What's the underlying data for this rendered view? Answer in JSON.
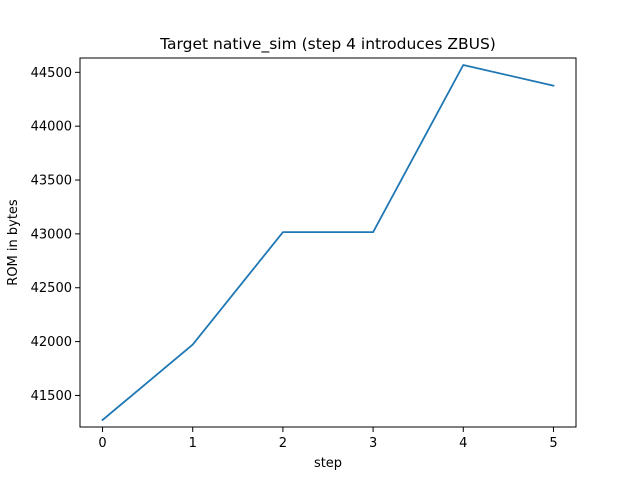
{
  "chart_data": {
    "type": "line",
    "title": "Target native_sim (step 4 introduces ZBUS)",
    "xlabel": "step",
    "ylabel": "ROM in bytes",
    "x": [
      0,
      1,
      2,
      3,
      4,
      5
    ],
    "series": [
      {
        "values": [
          41272,
          41972,
          43016,
          43016,
          44568,
          44376
        ]
      }
    ],
    "xticks": [
      "0",
      "1",
      "2",
      "3",
      "4",
      "5"
    ],
    "yticks": [
      41500,
      42000,
      42500,
      43000,
      43500,
      44000,
      44500
    ],
    "xlim": [
      -0.25,
      5.25
    ],
    "ylim": [
      41207,
      44633
    ],
    "grid": false,
    "line_color": "#1f77b4"
  }
}
